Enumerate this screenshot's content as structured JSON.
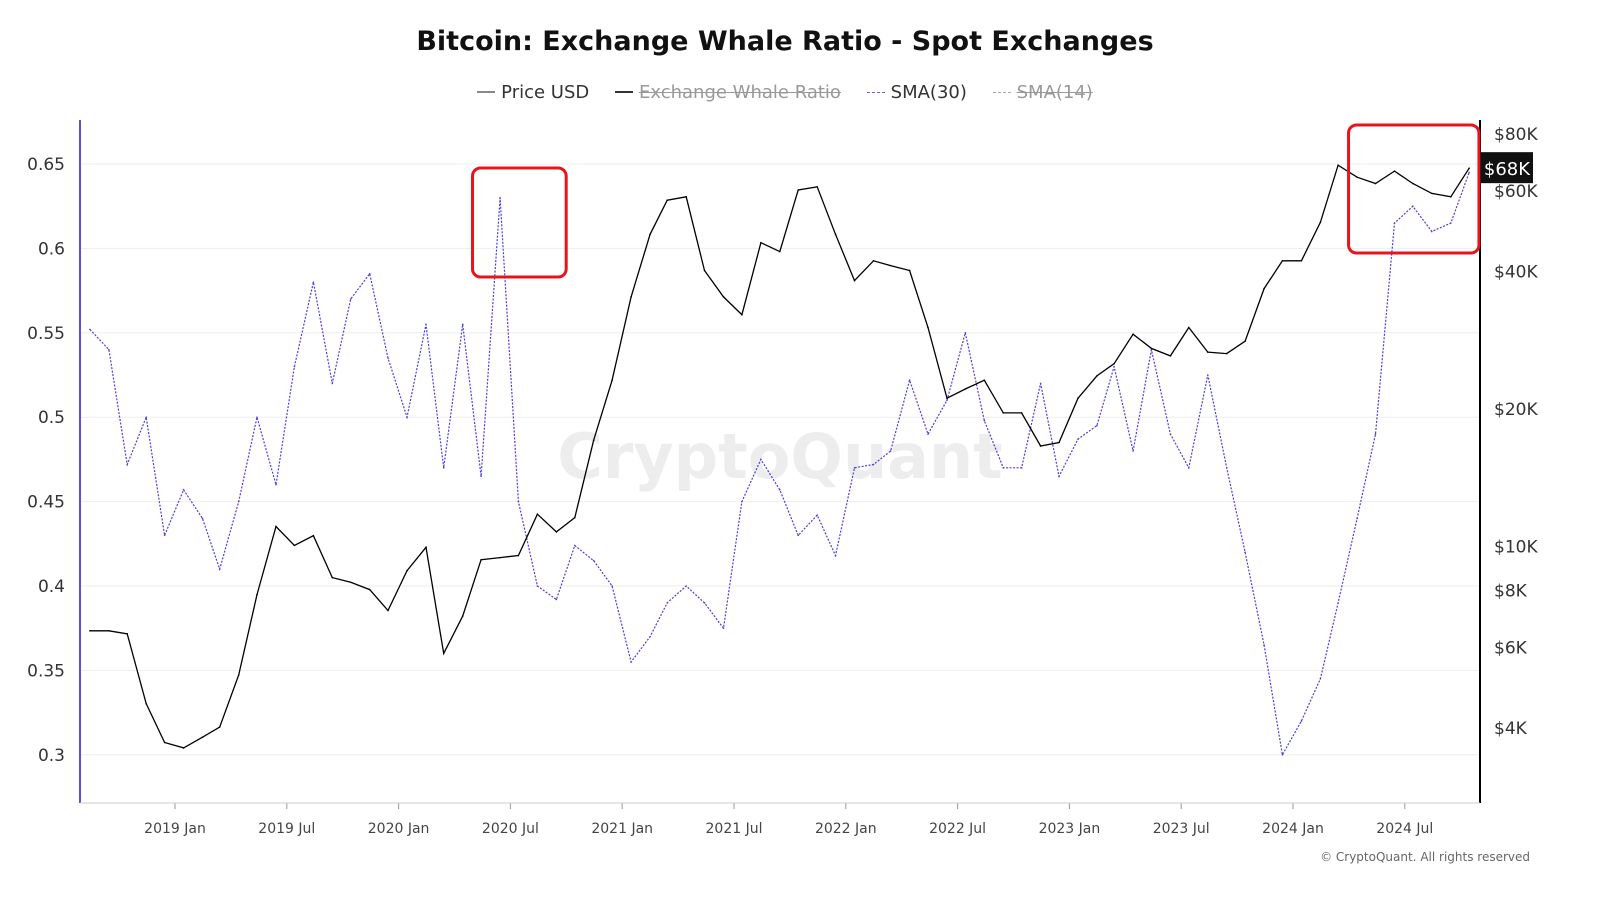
{
  "chart_data": {
    "type": "line",
    "title": "Bitcoin: Exchange Whale Ratio - Spot Exchanges",
    "legend": [
      {
        "label": "Price USD",
        "active": true,
        "color": "#000000",
        "style": "solid"
      },
      {
        "label": "Exchange Whale Ratio",
        "active": false,
        "color": "#333333",
        "style": "solid"
      },
      {
        "label": "SMA(30)",
        "active": true,
        "color": "#4a3fe0",
        "style": "dashed"
      },
      {
        "label": "SMA(14)",
        "active": false,
        "color": "#999999",
        "style": "dashed"
      }
    ],
    "legend_placement": "top-center",
    "x_ticks": [
      "2019 Jan",
      "2019 Jul",
      "2020 Jan",
      "2020 Jul",
      "2021 Jan",
      "2021 Jul",
      "2022 Jan",
      "2022 Jul",
      "2023 Jan",
      "2023 Jul",
      "2024 Jan",
      "2024 Jul"
    ],
    "y_left": {
      "ticks": [
        "0.65",
        "0.6",
        "0.55",
        "0.5",
        "0.45",
        "0.4",
        "0.35",
        "0.3"
      ],
      "range": [
        0.272,
        0.675
      ]
    },
    "y_right": {
      "scale": "log",
      "ticks": [
        "$80K",
        "$60K",
        "$40K",
        "$20K",
        "$10K",
        "$8K",
        "$6K",
        "$4K"
      ],
      "tick_values": [
        80000,
        60000,
        40000,
        20000,
        10000,
        8000,
        6000,
        4000
      ],
      "range": [
        2700,
        95000
      ]
    },
    "current_price_label": "$68K",
    "grid": "horizontal",
    "dates": [
      "2018-08-15",
      "2018-09-15",
      "2018-10-15",
      "2018-11-15",
      "2018-12-15",
      "2019-01-15",
      "2019-02-15",
      "2019-03-15",
      "2019-04-15",
      "2019-05-15",
      "2019-06-15",
      "2019-07-15",
      "2019-08-15",
      "2019-09-15",
      "2019-10-15",
      "2019-11-15",
      "2019-12-15",
      "2020-01-15",
      "2020-02-15",
      "2020-03-15",
      "2020-04-15",
      "2020-05-15",
      "2020-06-15",
      "2020-07-15",
      "2020-08-15",
      "2020-09-15",
      "2020-10-15",
      "2020-11-15",
      "2020-12-15",
      "2021-01-15",
      "2021-02-15",
      "2021-03-15",
      "2021-04-15",
      "2021-05-15",
      "2021-06-15",
      "2021-07-15",
      "2021-08-15",
      "2021-09-15",
      "2021-10-15",
      "2021-11-15",
      "2021-12-15",
      "2022-01-15",
      "2022-02-15",
      "2022-03-15",
      "2022-04-15",
      "2022-05-15",
      "2022-06-15",
      "2022-07-15",
      "2022-08-15",
      "2022-09-15",
      "2022-10-15",
      "2022-11-15",
      "2022-12-15",
      "2023-01-15",
      "2023-02-15",
      "2023-03-15",
      "2023-04-15",
      "2023-05-15",
      "2023-06-15",
      "2023-07-15",
      "2023-08-15",
      "2023-09-15",
      "2023-10-15",
      "2023-11-15",
      "2023-12-15",
      "2024-01-15",
      "2024-02-15",
      "2024-03-15",
      "2024-04-15",
      "2024-05-15",
      "2024-06-15",
      "2024-07-15",
      "2024-08-15",
      "2024-09-15",
      "2024-10-15"
    ],
    "series": [
      {
        "name": "Price USD",
        "axis": "right",
        "values": [
          6500,
          6500,
          6400,
          4500,
          3700,
          3600,
          3800,
          4000,
          5200,
          7800,
          11000,
          10000,
          10500,
          8500,
          8300,
          8000,
          7200,
          8800,
          9900,
          5800,
          7000,
          9300,
          9400,
          9500,
          11700,
          10700,
          11500,
          17000,
          23000,
          35000,
          48000,
          57000,
          58000,
          40000,
          35000,
          32000,
          46000,
          44000,
          60000,
          61000,
          48000,
          38000,
          42000,
          41000,
          40000,
          30000,
          21000,
          22000,
          23000,
          19500,
          19500,
          16500,
          16800,
          21000,
          23500,
          25000,
          29000,
          27000,
          26000,
          30000,
          26500,
          26300,
          28000,
          36500,
          42000,
          42000,
          51000,
          68000,
          64000,
          62000,
          66000,
          62000,
          59000,
          58000,
          67000
        ]
      },
      {
        "name": "SMA(30)",
        "axis": "left",
        "values": [
          0.552,
          0.54,
          0.472,
          0.5,
          0.43,
          0.457,
          0.44,
          0.41,
          0.45,
          0.5,
          0.46,
          0.53,
          0.58,
          0.52,
          0.57,
          0.585,
          0.535,
          0.5,
          0.555,
          0.47,
          0.555,
          0.465,
          0.63,
          0.45,
          0.4,
          0.392,
          0.424,
          0.415,
          0.4,
          0.355,
          0.37,
          0.39,
          0.4,
          0.39,
          0.375,
          0.45,
          0.475,
          0.457,
          0.43,
          0.442,
          0.418,
          0.47,
          0.472,
          0.48,
          0.522,
          0.49,
          0.51,
          0.55,
          0.498,
          0.47,
          0.47,
          0.52,
          0.465,
          0.487,
          0.495,
          0.53,
          0.48,
          0.54,
          0.49,
          0.47,
          0.525,
          0.47,
          0.42,
          0.365,
          0.3,
          0.32,
          0.345,
          0.39,
          0.44,
          0.49,
          0.615,
          0.625,
          0.61,
          0.615,
          0.645
        ]
      }
    ],
    "annotations": [
      {
        "type": "highlight-box",
        "color": "#e8141c",
        "from": "2020-05-01",
        "to": "2020-10-01"
      },
      {
        "type": "highlight-box",
        "color": "#e8141c",
        "from": "2024-04-01",
        "to": "2024-10-31"
      }
    ],
    "watermark": "CryptoQuant"
  },
  "footer": "© CryptoQuant. All rights reserved"
}
